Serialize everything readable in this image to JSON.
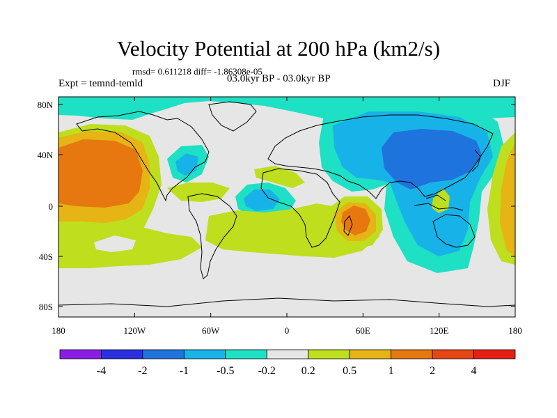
{
  "title": "Velocity Potential at 200 hPa (km2/s)",
  "stats_text": "rmsd= 0.611218 diff= -1.86308e-05",
  "experiment": "Expt = temnd-temld",
  "period": "03.0kyr BP - 03.0kyr BP",
  "season": "DJF",
  "map": {
    "lat_labels": [
      "80N",
      "40N",
      "0",
      "40S",
      "80S"
    ],
    "lon_labels": [
      "180",
      "120W",
      "60W",
      "0",
      "60E",
      "120E",
      "180"
    ]
  },
  "colorbar": {
    "colors": [
      "#8a1ee6",
      "#2a30e0",
      "#1f73dc",
      "#17b3e8",
      "#1ee0c4",
      "#e6e6e6",
      "#bede1e",
      "#e6b414",
      "#e6780f",
      "#e64614",
      "#e61e14"
    ],
    "labels": [
      "-4",
      "-2",
      "-1",
      "-0.5",
      "-0.2",
      "0.2",
      "0.5",
      "1",
      "2",
      "4"
    ]
  },
  "palette": {
    "strong_negative": "#1f73dc",
    "negative": "#17b3e8",
    "weak_negative": "#1ee0c4",
    "neutral": "#e6e6e6",
    "weak_positive": "#bede1e",
    "positive": "#e6b414",
    "strong_positive": "#e6780f",
    "coast": "#000000"
  }
}
